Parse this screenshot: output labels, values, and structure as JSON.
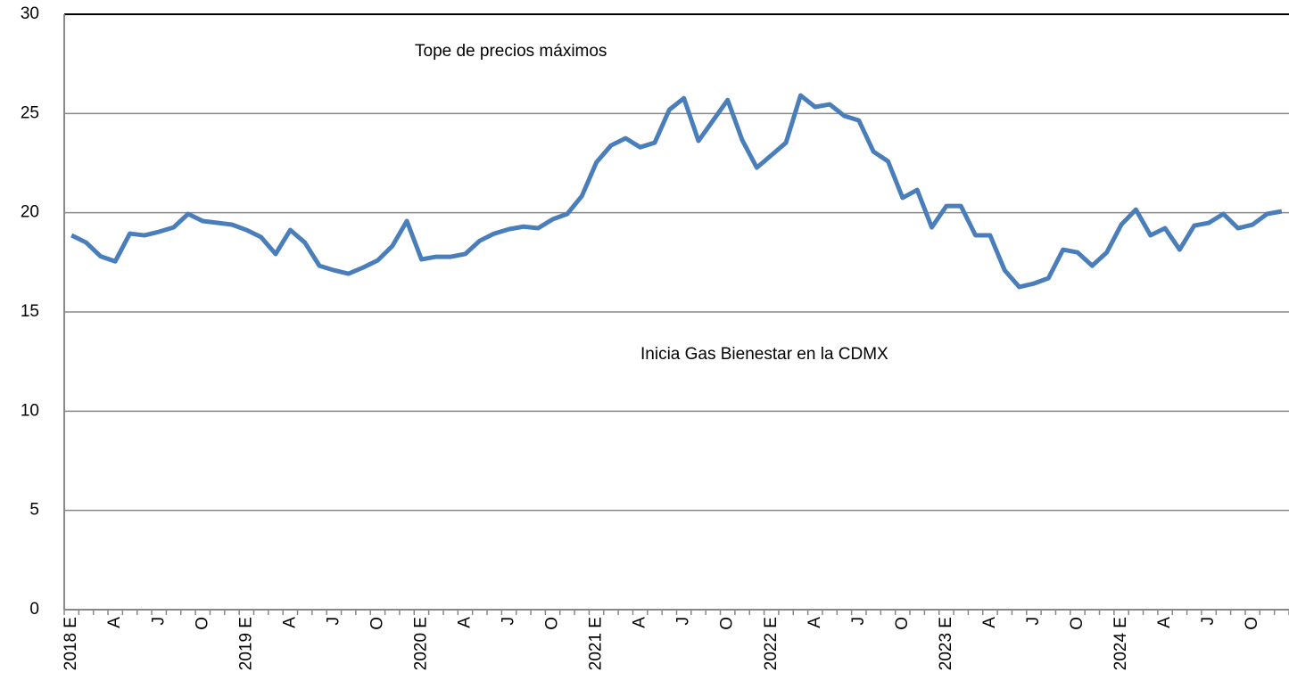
{
  "chart_data": {
    "type": "line",
    "annotations": [
      "Tope de precios máximos",
      "Inicia Gas Bienestar en la CDMX"
    ],
    "categories": [
      "2018 E",
      null,
      null,
      "A",
      null,
      null,
      "J",
      null,
      null,
      "O",
      null,
      null,
      "2019 E",
      null,
      null,
      "A",
      null,
      null,
      "J",
      null,
      null,
      "O",
      null,
      null,
      "2020 E",
      null,
      null,
      "A",
      null,
      null,
      "J",
      null,
      null,
      "O",
      null,
      null,
      "2021 E",
      null,
      null,
      "A",
      null,
      null,
      "J",
      null,
      null,
      "O",
      null,
      null,
      "2022 E",
      null,
      null,
      "A",
      null,
      null,
      "J",
      null,
      null,
      "O",
      null,
      null,
      "2023 E",
      null,
      null,
      "A",
      null,
      null,
      "J",
      null,
      null,
      "O",
      null,
      null,
      "2024 E",
      null,
      null,
      "A",
      null,
      null,
      "J",
      null,
      null,
      "O",
      null,
      null
    ],
    "values": [
      18.86,
      18.5,
      17.8,
      17.55,
      18.95,
      18.86,
      19.04,
      19.26,
      19.94,
      19.58,
      19.49,
      19.4,
      19.13,
      18.77,
      17.92,
      19.13,
      18.5,
      17.33,
      17.1,
      16.93,
      17.24,
      17.6,
      18.32,
      19.58,
      17.65,
      17.78,
      17.78,
      17.92,
      18.59,
      18.95,
      19.17,
      19.3,
      19.22,
      19.67,
      19.94,
      20.84,
      22.54,
      23.39,
      23.75,
      23.3,
      23.53,
      25.19,
      25.77,
      23.62,
      24.65,
      25.68,
      23.66,
      22.27,
      22.9,
      23.53,
      25.91,
      25.33,
      25.46,
      24.88,
      24.65,
      23.08,
      22.59,
      20.75,
      21.15,
      19.26,
      20.34,
      20.34,
      18.86,
      18.86,
      17.1,
      16.26,
      16.43,
      16.7,
      18.14,
      18.0,
      17.33,
      18.0,
      19.4,
      20.16,
      18.86,
      19.22,
      18.14,
      19.35,
      19.49,
      19.94,
      19.22,
      19.4,
      19.94,
      20.07
    ],
    "color": "#4a7ebb",
    "ylim": [
      0,
      30
    ],
    "yticks": [
      0,
      5,
      10,
      15,
      20,
      25,
      30
    ],
    "grid": true
  }
}
